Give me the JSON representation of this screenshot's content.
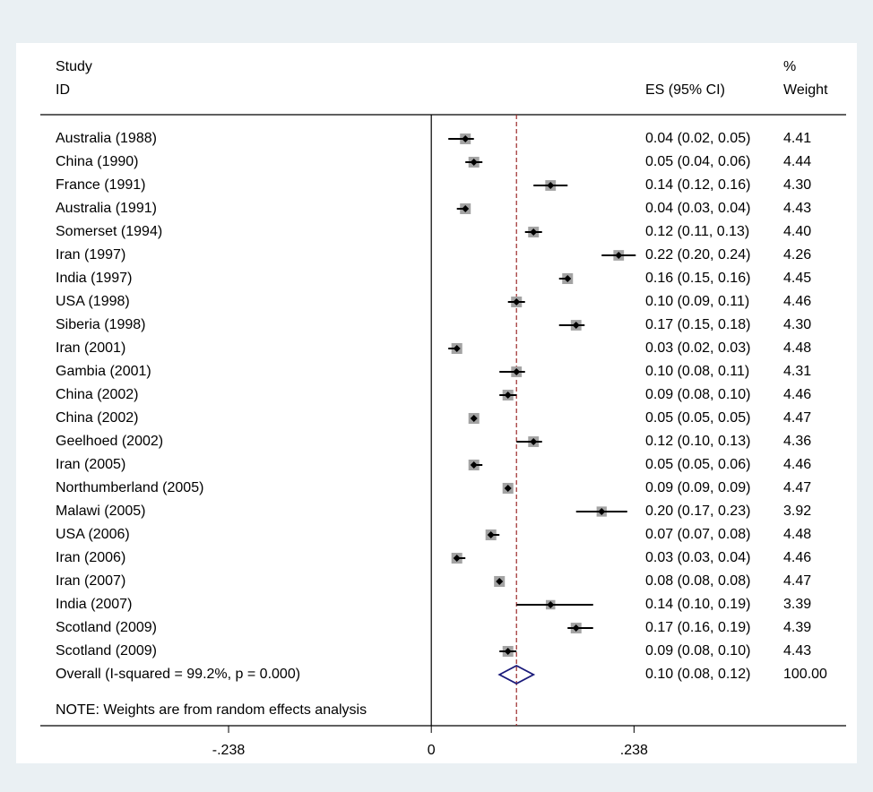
{
  "chart_data": {
    "type": "forest",
    "headers": {
      "study": "Study",
      "id": "ID",
      "es": "ES (95% CI)",
      "pct": "%",
      "weight": "Weight"
    },
    "categories": [
      "Australia (1988)",
      "China (1990)",
      "France (1991)",
      "Australia (1991)",
      "Somerset (1994)",
      "Iran (1997)",
      "India (1997)",
      "USA (1998)",
      "Siberia (1998)",
      "Iran (2001)",
      "Gambia (2001)",
      "China (2002)",
      "China (2002)",
      "Geelhoed (2002)",
      "Iran (2005)",
      "Northumberland (2005)",
      "Malawi (2005)",
      "USA (2006)",
      "Iran (2006)",
      "Iran (2007)",
      "India (2007)",
      "Scotland (2009)",
      "Scotland (2009)"
    ],
    "values": [
      0.04,
      0.05,
      0.14,
      0.04,
      0.12,
      0.22,
      0.16,
      0.1,
      0.17,
      0.03,
      0.1,
      0.09,
      0.05,
      0.12,
      0.05,
      0.09,
      0.2,
      0.07,
      0.03,
      0.08,
      0.14,
      0.17,
      0.09
    ],
    "lower": [
      0.02,
      0.04,
      0.12,
      0.03,
      0.11,
      0.2,
      0.15,
      0.09,
      0.15,
      0.02,
      0.08,
      0.08,
      0.05,
      0.1,
      0.05,
      0.09,
      0.17,
      0.07,
      0.03,
      0.08,
      0.1,
      0.16,
      0.08
    ],
    "upper": [
      0.05,
      0.06,
      0.16,
      0.04,
      0.13,
      0.24,
      0.16,
      0.11,
      0.18,
      0.03,
      0.11,
      0.1,
      0.05,
      0.13,
      0.06,
      0.09,
      0.23,
      0.08,
      0.04,
      0.08,
      0.19,
      0.19,
      0.1
    ],
    "value_labels": [
      "0.04 (0.02, 0.05)",
      "0.05 (0.04, 0.06)",
      "0.14 (0.12, 0.16)",
      "0.04 (0.03, 0.04)",
      "0.12 (0.11, 0.13)",
      "0.22 (0.20, 0.24)",
      "0.16 (0.15, 0.16)",
      "0.10 (0.09, 0.11)",
      "0.17 (0.15, 0.18)",
      "0.03 (0.02, 0.03)",
      "0.10 (0.08, 0.11)",
      "0.09 (0.08, 0.10)",
      "0.05 (0.05, 0.05)",
      "0.12 (0.10, 0.13)",
      "0.05 (0.05, 0.06)",
      "0.09 (0.09, 0.09)",
      "0.20 (0.17, 0.23)",
      "0.07 (0.07, 0.08)",
      "0.03 (0.03, 0.04)",
      "0.08 (0.08, 0.08)",
      "0.14 (0.10, 0.19)",
      "0.17 (0.16, 0.19)",
      "0.09 (0.08, 0.10)"
    ],
    "weights": [
      4.41,
      4.44,
      4.3,
      4.43,
      4.4,
      4.26,
      4.45,
      4.46,
      4.3,
      4.48,
      4.31,
      4.46,
      4.47,
      4.36,
      4.46,
      4.47,
      3.92,
      4.48,
      4.46,
      4.47,
      3.39,
      4.39,
      4.43
    ],
    "weight_labels": [
      "4.41",
      "4.44",
      "4.30",
      "4.43",
      "4.40",
      "4.26",
      "4.45",
      "4.46",
      "4.30",
      "4.48",
      "4.31",
      "4.46",
      "4.47",
      "4.36",
      "4.46",
      "4.47",
      "3.92",
      "4.48",
      "4.46",
      "4.47",
      "3.39",
      "4.39",
      "4.43"
    ],
    "overall": {
      "label": "Overall  (I-squared = 99.2%, p = 0.000)",
      "value": 0.1,
      "lower": 0.08,
      "upper": 0.12,
      "value_label": "0.10 (0.08, 0.12)",
      "weight": 100,
      "weight_label": "100.00",
      "color": "#1a1a7a"
    },
    "note": "NOTE: Weights are from random effects analysis",
    "xlim": [
      -0.459,
      0.487
    ],
    "xticks": [
      {
        "value": -0.238,
        "label": "-.238"
      },
      0,
      {
        "value": 0.238,
        "label": ".238"
      }
    ],
    "box_color": "#a3a3a3",
    "point_color": "#000000",
    "reference_color": "#9b2a2a"
  }
}
